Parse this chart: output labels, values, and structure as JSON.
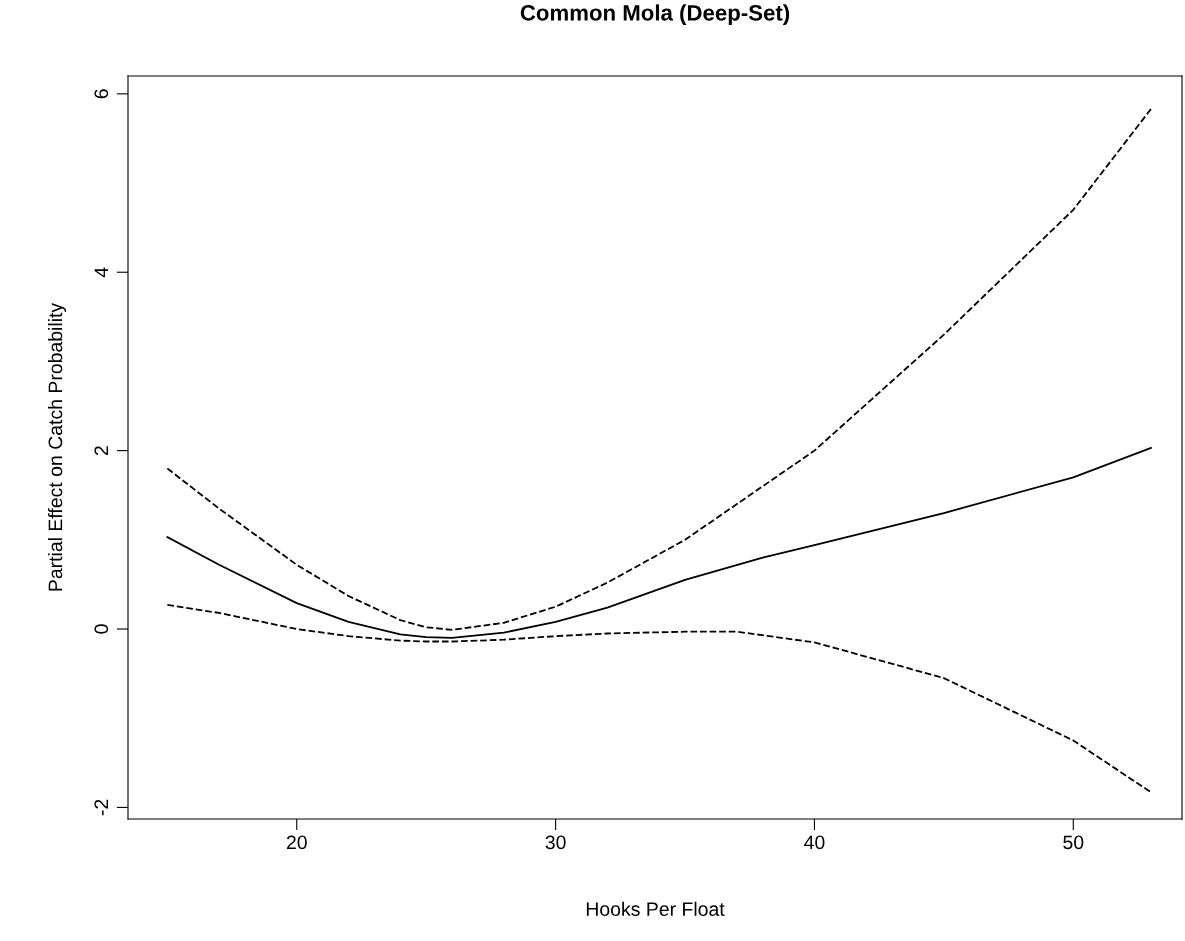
{
  "chart_data": {
    "type": "line",
    "title": "Common Mola (Deep-Set)",
    "xlabel": "Hooks Per Float",
    "ylabel": "Partial Effect on Catch Probability",
    "xlim": [
      13.48,
      54.2
    ],
    "ylim": [
      -2.13,
      6.2
    ],
    "xticks": [
      20,
      30,
      40,
      50
    ],
    "yticks": [
      -2,
      0,
      2,
      4,
      6
    ],
    "grid": false,
    "legend": false,
    "marker": "none",
    "series": [
      {
        "color": "#000000",
        "line_style": "solid",
        "x": [
          15,
          17,
          20,
          22,
          24,
          25,
          26,
          28,
          30,
          32,
          35,
          38,
          40,
          45,
          50,
          53
        ],
        "values": [
          1.03,
          0.72,
          0.29,
          0.08,
          -0.06,
          -0.09,
          -0.1,
          -0.04,
          0.08,
          0.24,
          0.55,
          0.8,
          0.94,
          1.3,
          1.7,
          2.03
        ]
      },
      {
        "color": "#000000",
        "line_style": "dashed",
        "x": [
          15,
          17,
          20,
          22,
          24,
          25,
          26,
          28,
          30,
          32,
          35,
          38,
          40,
          45,
          50,
          53
        ],
        "values": [
          1.8,
          1.35,
          0.72,
          0.37,
          0.1,
          0.02,
          -0.01,
          0.07,
          0.25,
          0.52,
          1.0,
          1.6,
          2.0,
          3.3,
          4.7,
          5.83
        ]
      },
      {
        "color": "#000000",
        "line_style": "dashed",
        "x": [
          15,
          17,
          20,
          22,
          24,
          25,
          26,
          28,
          30,
          32,
          35,
          37,
          40,
          45,
          50,
          53
        ],
        "values": [
          0.27,
          0.18,
          0.0,
          -0.08,
          -0.13,
          -0.14,
          -0.14,
          -0.12,
          -0.08,
          -0.05,
          -0.03,
          -0.03,
          -0.15,
          -0.55,
          -1.25,
          -1.83
        ]
      }
    ]
  }
}
